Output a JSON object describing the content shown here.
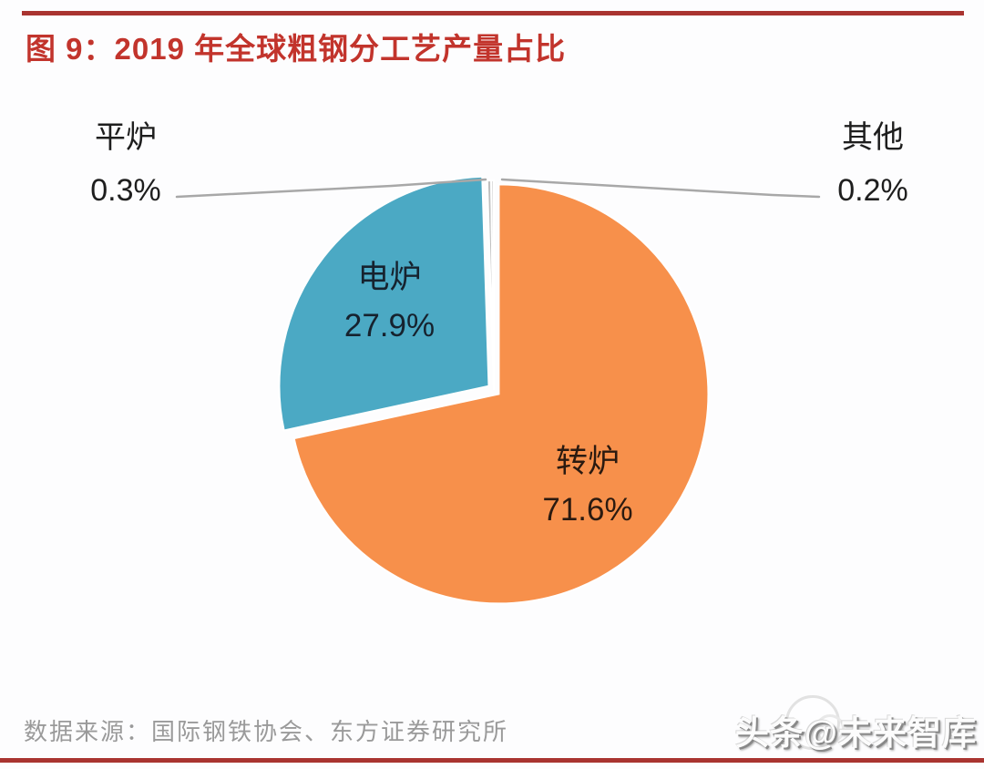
{
  "header": {
    "title": "图 9：2019 年全球粗钢分工艺产量占比"
  },
  "chart_data": {
    "type": "pie",
    "title": "2019 年全球粗钢分工艺产量占比",
    "unit": "%",
    "direction": "clockwise",
    "start_angle_deg": 0,
    "legend_position": "none",
    "label_style": "on-slice labels for large slices, leader-line callouts for tiny slices",
    "slices": [
      {
        "label": "转炉",
        "value": 71.6,
        "display": "71.6%",
        "color": "#F7904B"
      },
      {
        "label": "电炉",
        "value": 27.9,
        "display": "27.9%",
        "color": "#4BA9C4"
      },
      {
        "label": "平炉",
        "value": 0.3,
        "display": "0.3%",
        "color": "#BFBFBF"
      },
      {
        "label": "其他",
        "value": 0.2,
        "display": "0.2%",
        "color": "#D9D9D9"
      }
    ]
  },
  "source": {
    "text": "数据来源：国际钢铁协会、东方证券研究所"
  },
  "watermark": {
    "text": "头条@未来智库"
  },
  "colors": {
    "title_red": "#C2342C",
    "rule_red": "#A93430",
    "slice_orange": "#F7904B",
    "slice_blue": "#4BA9C4",
    "leader_line_gray": "#A8A8A8",
    "source_gray": "#9A9A9A",
    "background": "#FDFDFE"
  }
}
